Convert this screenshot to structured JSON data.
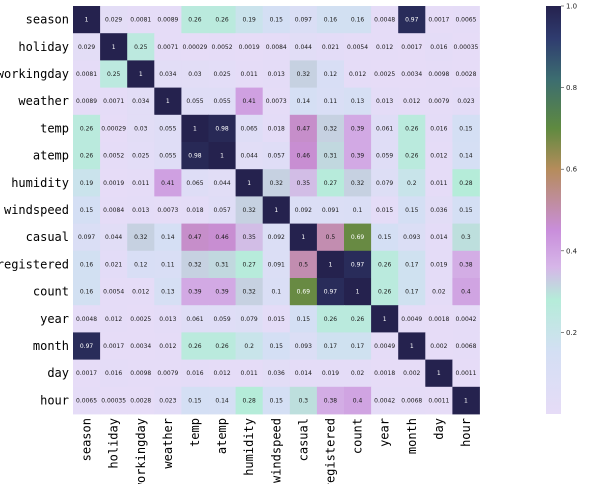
{
  "chart_data": {
    "type": "heatmap",
    "variables": [
      "season",
      "holiday",
      "workingday",
      "weather",
      "temp",
      "atemp",
      "humidity",
      "windspeed",
      "casual",
      "registered",
      "count",
      "year",
      "month",
      "day",
      "hour"
    ],
    "matrix": [
      [
        "1",
        "0.029",
        "0.0081",
        "0.0089",
        "0.26",
        "0.26",
        "0.19",
        "0.15",
        "0.097",
        "0.16",
        "0.16",
        "0.0048",
        "0.97",
        "0.0017",
        "0.0065"
      ],
      [
        "0.029",
        "1",
        "0.25",
        "0.0071",
        "0.00029",
        "0.0052",
        "0.0019",
        "0.0084",
        "0.044",
        "0.021",
        "0.0054",
        "0.012",
        "0.0017",
        "0.016",
        "0.00035"
      ],
      [
        "0.0081",
        "0.25",
        "1",
        "0.034",
        "0.03",
        "0.025",
        "0.011",
        "0.013",
        "0.32",
        "0.12",
        "0.012",
        "0.0025",
        "0.0034",
        "0.0098",
        "0.0028"
      ],
      [
        "0.0089",
        "0.0071",
        "0.034",
        "1",
        "0.055",
        "0.055",
        "0.41",
        "0.0073",
        "0.14",
        "0.11",
        "0.13",
        "0.013",
        "0.012",
        "0.0079",
        "0.023"
      ],
      [
        "0.26",
        "0.00029",
        "0.03",
        "0.055",
        "1",
        "0.98",
        "0.065",
        "0.018",
        "0.47",
        "0.32",
        "0.39",
        "0.061",
        "0.26",
        "0.016",
        "0.15"
      ],
      [
        "0.26",
        "0.0052",
        "0.025",
        "0.055",
        "0.98",
        "1",
        "0.044",
        "0.057",
        "0.46",
        "0.31",
        "0.39",
        "0.059",
        "0.26",
        "0.012",
        "0.14"
      ],
      [
        "0.19",
        "0.0019",
        "0.011",
        "0.41",
        "0.065",
        "0.044",
        "1",
        "0.32",
        "0.35",
        "0.27",
        "0.32",
        "0.079",
        "0.2",
        "0.011",
        "0.28"
      ],
      [
        "0.15",
        "0.0084",
        "0.013",
        "0.0073",
        "0.018",
        "0.057",
        "0.32",
        "1",
        "0.092",
        "0.091",
        "0.1",
        "0.015",
        "0.15",
        "0.036",
        "0.15"
      ],
      [
        "0.097",
        "0.044",
        "0.32",
        "0.14",
        "0.47",
        "0.46",
        "0.35",
        "0.092",
        "1",
        "0.5",
        "0.69",
        "0.15",
        "0.093",
        "0.014",
        "0.3"
      ],
      [
        "0.16",
        "0.021",
        "0.12",
        "0.11",
        "0.32",
        "0.31",
        "0.27",
        "0.091",
        "0.5",
        "1",
        "0.97",
        "0.26",
        "0.17",
        "0.019",
        "0.38"
      ],
      [
        "0.16",
        "0.0054",
        "0.012",
        "0.13",
        "0.39",
        "0.39",
        "0.32",
        "0.1",
        "0.69",
        "0.97",
        "1",
        "0.26",
        "0.17",
        "0.02",
        "0.4"
      ],
      [
        "0.0048",
        "0.012",
        "0.0025",
        "0.013",
        "0.061",
        "0.059",
        "0.079",
        "0.015",
        "0.15",
        "0.26",
        "0.26",
        "1",
        "0.0049",
        "0.0018",
        "0.0042"
      ],
      [
        "0.97",
        "0.0017",
        "0.0034",
        "0.012",
        "0.26",
        "0.26",
        "0.2",
        "0.15",
        "0.093",
        "0.17",
        "0.17",
        "0.0049",
        "1",
        "0.002",
        "0.0068"
      ],
      [
        "0.0017",
        "0.016",
        "0.0098",
        "0.0079",
        "0.016",
        "0.012",
        "0.011",
        "0.036",
        "0.014",
        "0.019",
        "0.02",
        "0.0018",
        "0.002",
        "1",
        "0.0011"
      ],
      [
        "0.0065",
        "0.00035",
        "0.0028",
        "0.023",
        "0.15",
        "0.14",
        "0.28",
        "0.15",
        "0.3",
        "0.38",
        "0.4",
        "0.0042",
        "0.0068",
        "0.0011",
        "1"
      ]
    ],
    "colorbar": {
      "range": [
        0,
        1
      ],
      "ticks": [
        "1.0",
        "0.8",
        "0.6",
        "0.4",
        "0.2"
      ],
      "tick_values": [
        1.0,
        0.8,
        0.6,
        0.4,
        0.2
      ],
      "colormap_stops": [
        {
          "v": 0.0,
          "c": "#e6dcf7"
        },
        {
          "v": 0.15,
          "c": "#d4dff4"
        },
        {
          "v": 0.28,
          "c": "#b5ecd9"
        },
        {
          "v": 0.36,
          "c": "#d6b6e8"
        },
        {
          "v": 0.45,
          "c": "#c98edb"
        },
        {
          "v": 0.6,
          "c": "#b58c5b"
        },
        {
          "v": 0.7,
          "c": "#5f8a40"
        },
        {
          "v": 0.82,
          "c": "#3c6d70"
        },
        {
          "v": 0.92,
          "c": "#2f3c6f"
        },
        {
          "v": 1.0,
          "c": "#25224e"
        }
      ]
    },
    "title": "",
    "xlabel": "",
    "ylabel": "",
    "grid": false
  }
}
